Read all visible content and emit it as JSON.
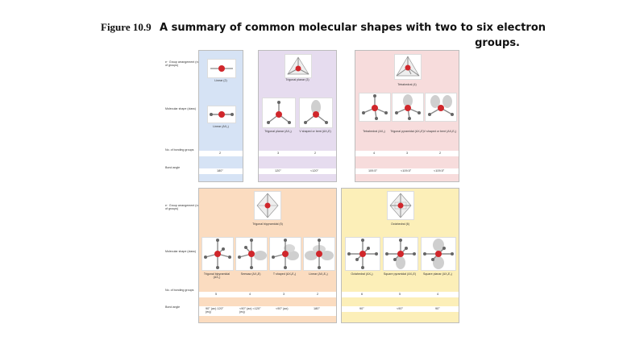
{
  "title": {
    "figure_label": "Figure 10.9",
    "caption_line1": "A summary of common molecular shapes with two to six electron",
    "caption_line2": "groups."
  },
  "row_labels_top": {
    "arrangement": "e⁻ Group arrangement (no. of groups)",
    "molecular": "Molecular shape (class)",
    "bonding": "No. of bonding groups",
    "angle": "Bond angle"
  },
  "row_labels_bottom": {
    "arrangement": "e⁻ Group arrangement (no. of groups)",
    "molecular": "Molecular shape (class)",
    "bonding": "No. of bonding groups",
    "angle": "Bond angle"
  },
  "panels": {
    "linear": {
      "color": "#d6e3f5",
      "arrangement": "Linear (2)",
      "shapes": [
        {
          "name": "Linear (AX₂)",
          "bonding": "2",
          "angle": "180°"
        }
      ]
    },
    "trigonal": {
      "color": "#e6dcef",
      "arrangement": "Trigonal planar (3)",
      "shapes": [
        {
          "name": "Trigonal planar (AX₃)",
          "bonding": "3",
          "angle": "120°"
        },
        {
          "name": "V shaped or bent (AX₂E)",
          "bonding": "2",
          "angle": "<120°"
        }
      ]
    },
    "tetrahedral": {
      "color": "#f7dcdc",
      "arrangement": "Tetrahedral (4)",
      "shapes": [
        {
          "name": "Tetrahedral (AX₄)",
          "bonding": "4",
          "angle": "109.5°"
        },
        {
          "name": "Trigonal pyramidal (AX₃E)",
          "bonding": "3",
          "angle": "<109.5°"
        },
        {
          "name": "V shaped or bent (AX₂E₂)",
          "bonding": "2",
          "angle": "<109.5°"
        }
      ]
    },
    "tbp": {
      "color": "#fbdcc0",
      "arrangement": "Trigonal bipyramidal (5)",
      "shapes": [
        {
          "name": "Trigonal bipyramidal (AX₅)",
          "bonding": "5",
          "angle": "90° (ax) 120° (eq)"
        },
        {
          "name": "Seesaw (AX₄E)",
          "bonding": "4",
          "angle": "<90° (ax) <120° (eq)"
        },
        {
          "name": "T shaped (AX₃E₂)",
          "bonding": "3",
          "angle": "<90° (ax)"
        },
        {
          "name": "Linear (AX₂E₃)",
          "bonding": "2",
          "angle": "180°"
        }
      ]
    },
    "octahedral": {
      "color": "#fcefb8",
      "arrangement": "Octahedral (6)",
      "shapes": [
        {
          "name": "Octahedral (AX₆)",
          "bonding": "6",
          "angle": "90°"
        },
        {
          "name": "Square pyramidal (AX₅E)",
          "bonding": "5",
          "angle": "<90°"
        },
        {
          "name": "Square planar (AX₄E₂)",
          "bonding": "4",
          "angle": "90°"
        }
      ]
    }
  },
  "colors": {
    "atom_red": "#d0262b",
    "bond_gray": "#8a8a8a",
    "lobe_gray": "#cfcfcf"
  }
}
